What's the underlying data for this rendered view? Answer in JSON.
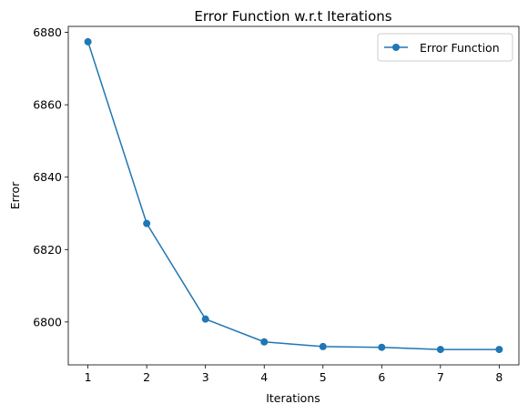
{
  "chart_data": {
    "type": "line",
    "title": "Error Function w.r.t Iterations",
    "xlabel": "Iterations",
    "ylabel": "Error",
    "x": [
      1,
      2,
      3,
      4,
      5,
      6,
      7,
      8
    ],
    "series": [
      {
        "name": "Error Function",
        "values": [
          6877.4,
          6827.2,
          6800.8,
          6794.5,
          6793.2,
          6793.0,
          6792.4,
          6792.4
        ],
        "color": "#1f77b4",
        "marker": "circle"
      }
    ],
    "xticks": [
      "1",
      "2",
      "3",
      "4",
      "5",
      "6",
      "7",
      "8"
    ],
    "yticks": [
      "6800",
      "6820",
      "6840",
      "6860",
      "6880"
    ],
    "ytick_values": [
      6800,
      6820,
      6840,
      6860,
      6880
    ],
    "xlim": [
      0.665,
      8.335
    ],
    "ylim": [
      6788.15,
      6881.65
    ],
    "grid": false,
    "legend_position": "top-right"
  }
}
